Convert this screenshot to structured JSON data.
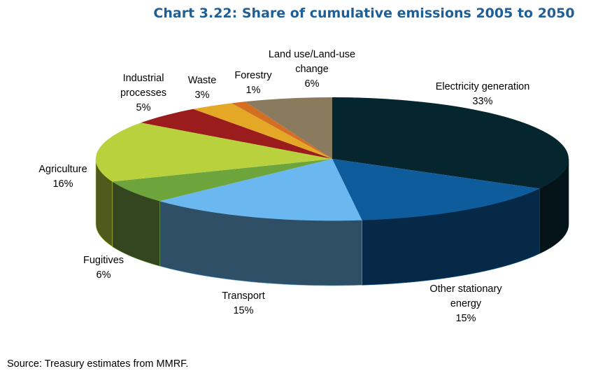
{
  "chart_data": {
    "type": "pie",
    "style": "3d",
    "title": "Chart 3.22: Share of cumulative emissions 2005 to 2050",
    "slices": [
      {
        "label_lines": [
          "Electricity generation"
        ],
        "value": 33,
        "value_label": "33%",
        "color": "#06262f",
        "side_color": "#031317"
      },
      {
        "label_lines": [
          "Other stationary",
          "energy"
        ],
        "value": 15,
        "value_label": "15%",
        "color": "#0e5c9c",
        "side_color": "#052947"
      },
      {
        "label_lines": [
          "Transport"
        ],
        "value": 15,
        "value_label": "15%",
        "color": "#6ab8ef",
        "side_color": "#2f4f66"
      },
      {
        "label_lines": [
          "Fugitives"
        ],
        "value": 6,
        "value_label": "6%",
        "color": "#6da43c",
        "side_color": "#33461f"
      },
      {
        "label_lines": [
          "Agriculture"
        ],
        "value": 16,
        "value_label": "16%",
        "color": "#b9d13c",
        "side_color": "#4f5a1c"
      },
      {
        "label_lines": [
          "Industrial",
          "processes"
        ],
        "value": 5,
        "value_label": "5%",
        "color": "#9a1c1c",
        "side_color": "#4a0d0d"
      },
      {
        "label_lines": [
          "Waste"
        ],
        "value": 3,
        "value_label": "3%",
        "color": "#e5a826",
        "side_color": "#7a5912"
      },
      {
        "label_lines": [
          "Forestry"
        ],
        "value": 1,
        "value_label": "1%",
        "color": "#d36e22",
        "side_color": "#6e3a12"
      },
      {
        "label_lines": [
          "Land use/Land-use",
          "change"
        ],
        "value": 6,
        "value_label": "6%",
        "color": "#8b7b5e",
        "side_color": "#4a4132"
      }
    ]
  },
  "source": "Source: Treasury estimates from MMRF."
}
